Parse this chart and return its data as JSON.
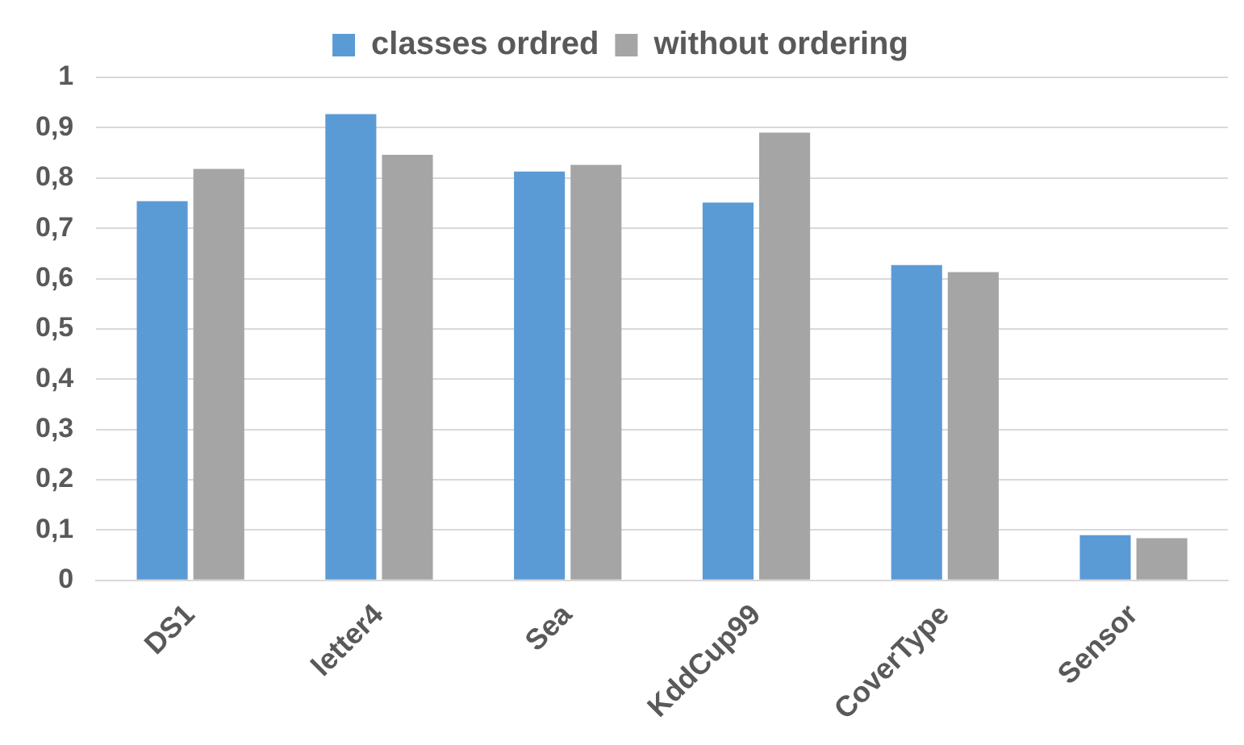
{
  "chart_data": {
    "type": "bar",
    "categories": [
      "DS1",
      "letter4",
      "Sea",
      "KddCup99",
      "CoverType",
      "Sensor"
    ],
    "series": [
      {
        "name": "classes ordred",
        "color": "#5b9bd5",
        "values": [
          0.754,
          0.927,
          0.813,
          0.751,
          0.627,
          0.09
        ]
      },
      {
        "name": "without ordering",
        "color": "#a5a5a5",
        "values": [
          0.818,
          0.846,
          0.826,
          0.89,
          0.613,
          0.084
        ]
      }
    ],
    "ylim": [
      0,
      1
    ],
    "yticks": [
      {
        "value": 0,
        "label": "0"
      },
      {
        "value": 0.1,
        "label": "0,1"
      },
      {
        "value": 0.2,
        "label": "0,2"
      },
      {
        "value": 0.3,
        "label": "0,3"
      },
      {
        "value": 0.4,
        "label": "0,4"
      },
      {
        "value": 0.5,
        "label": "0,5"
      },
      {
        "value": 0.6,
        "label": "0,6"
      },
      {
        "value": 0.7,
        "label": "0,7"
      },
      {
        "value": 0.8,
        "label": "0,8"
      },
      {
        "value": 0.9,
        "label": "0,9"
      },
      {
        "value": 1,
        "label": "1"
      }
    ],
    "grid": "y",
    "legend": "top"
  }
}
